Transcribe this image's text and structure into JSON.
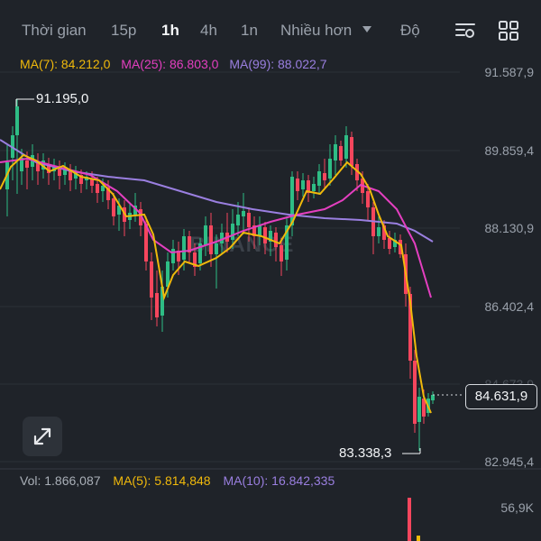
{
  "tabs": [
    {
      "label": "Thời gian",
      "active": false
    },
    {
      "label": "15p",
      "active": false
    },
    {
      "label": "1h",
      "active": true
    },
    {
      "label": "4h",
      "active": false
    },
    {
      "label": "1n",
      "active": false
    },
    {
      "label": "Nhiều hơn",
      "active": false
    },
    {
      "label": "Độ",
      "active": false
    }
  ],
  "icons": {
    "settings": "chart-settings-icon",
    "layout": "grid-layout-icon",
    "expand": "expand-arrows-icon"
  },
  "ma": {
    "ma7": "MA(7): 84.212,0",
    "ma25": "MA(25): 86.803,0",
    "ma99": "MA(99): 88.022,7"
  },
  "price_axis": [
    "91.587,9",
    "89.859,4",
    "88.130,9",
    "86.402,4",
    "84.673,9",
    "82.945,4"
  ],
  "current_price": "84.631,9",
  "high_label": "91.195,0",
  "low_label": "83.338,3",
  "watermark": "BINANCE",
  "volume": {
    "vol": "Vol: 1.866,087",
    "ma5": "MA(5): 5.814,848",
    "ma10": "MA(10): 16.842,335",
    "axis": "56,9K"
  },
  "colors": {
    "up": "#2ebd85",
    "down": "#f6465d",
    "ma7": "#f0b90b",
    "ma25": "#e43fc0",
    "ma99": "#9a7fe0"
  }
}
